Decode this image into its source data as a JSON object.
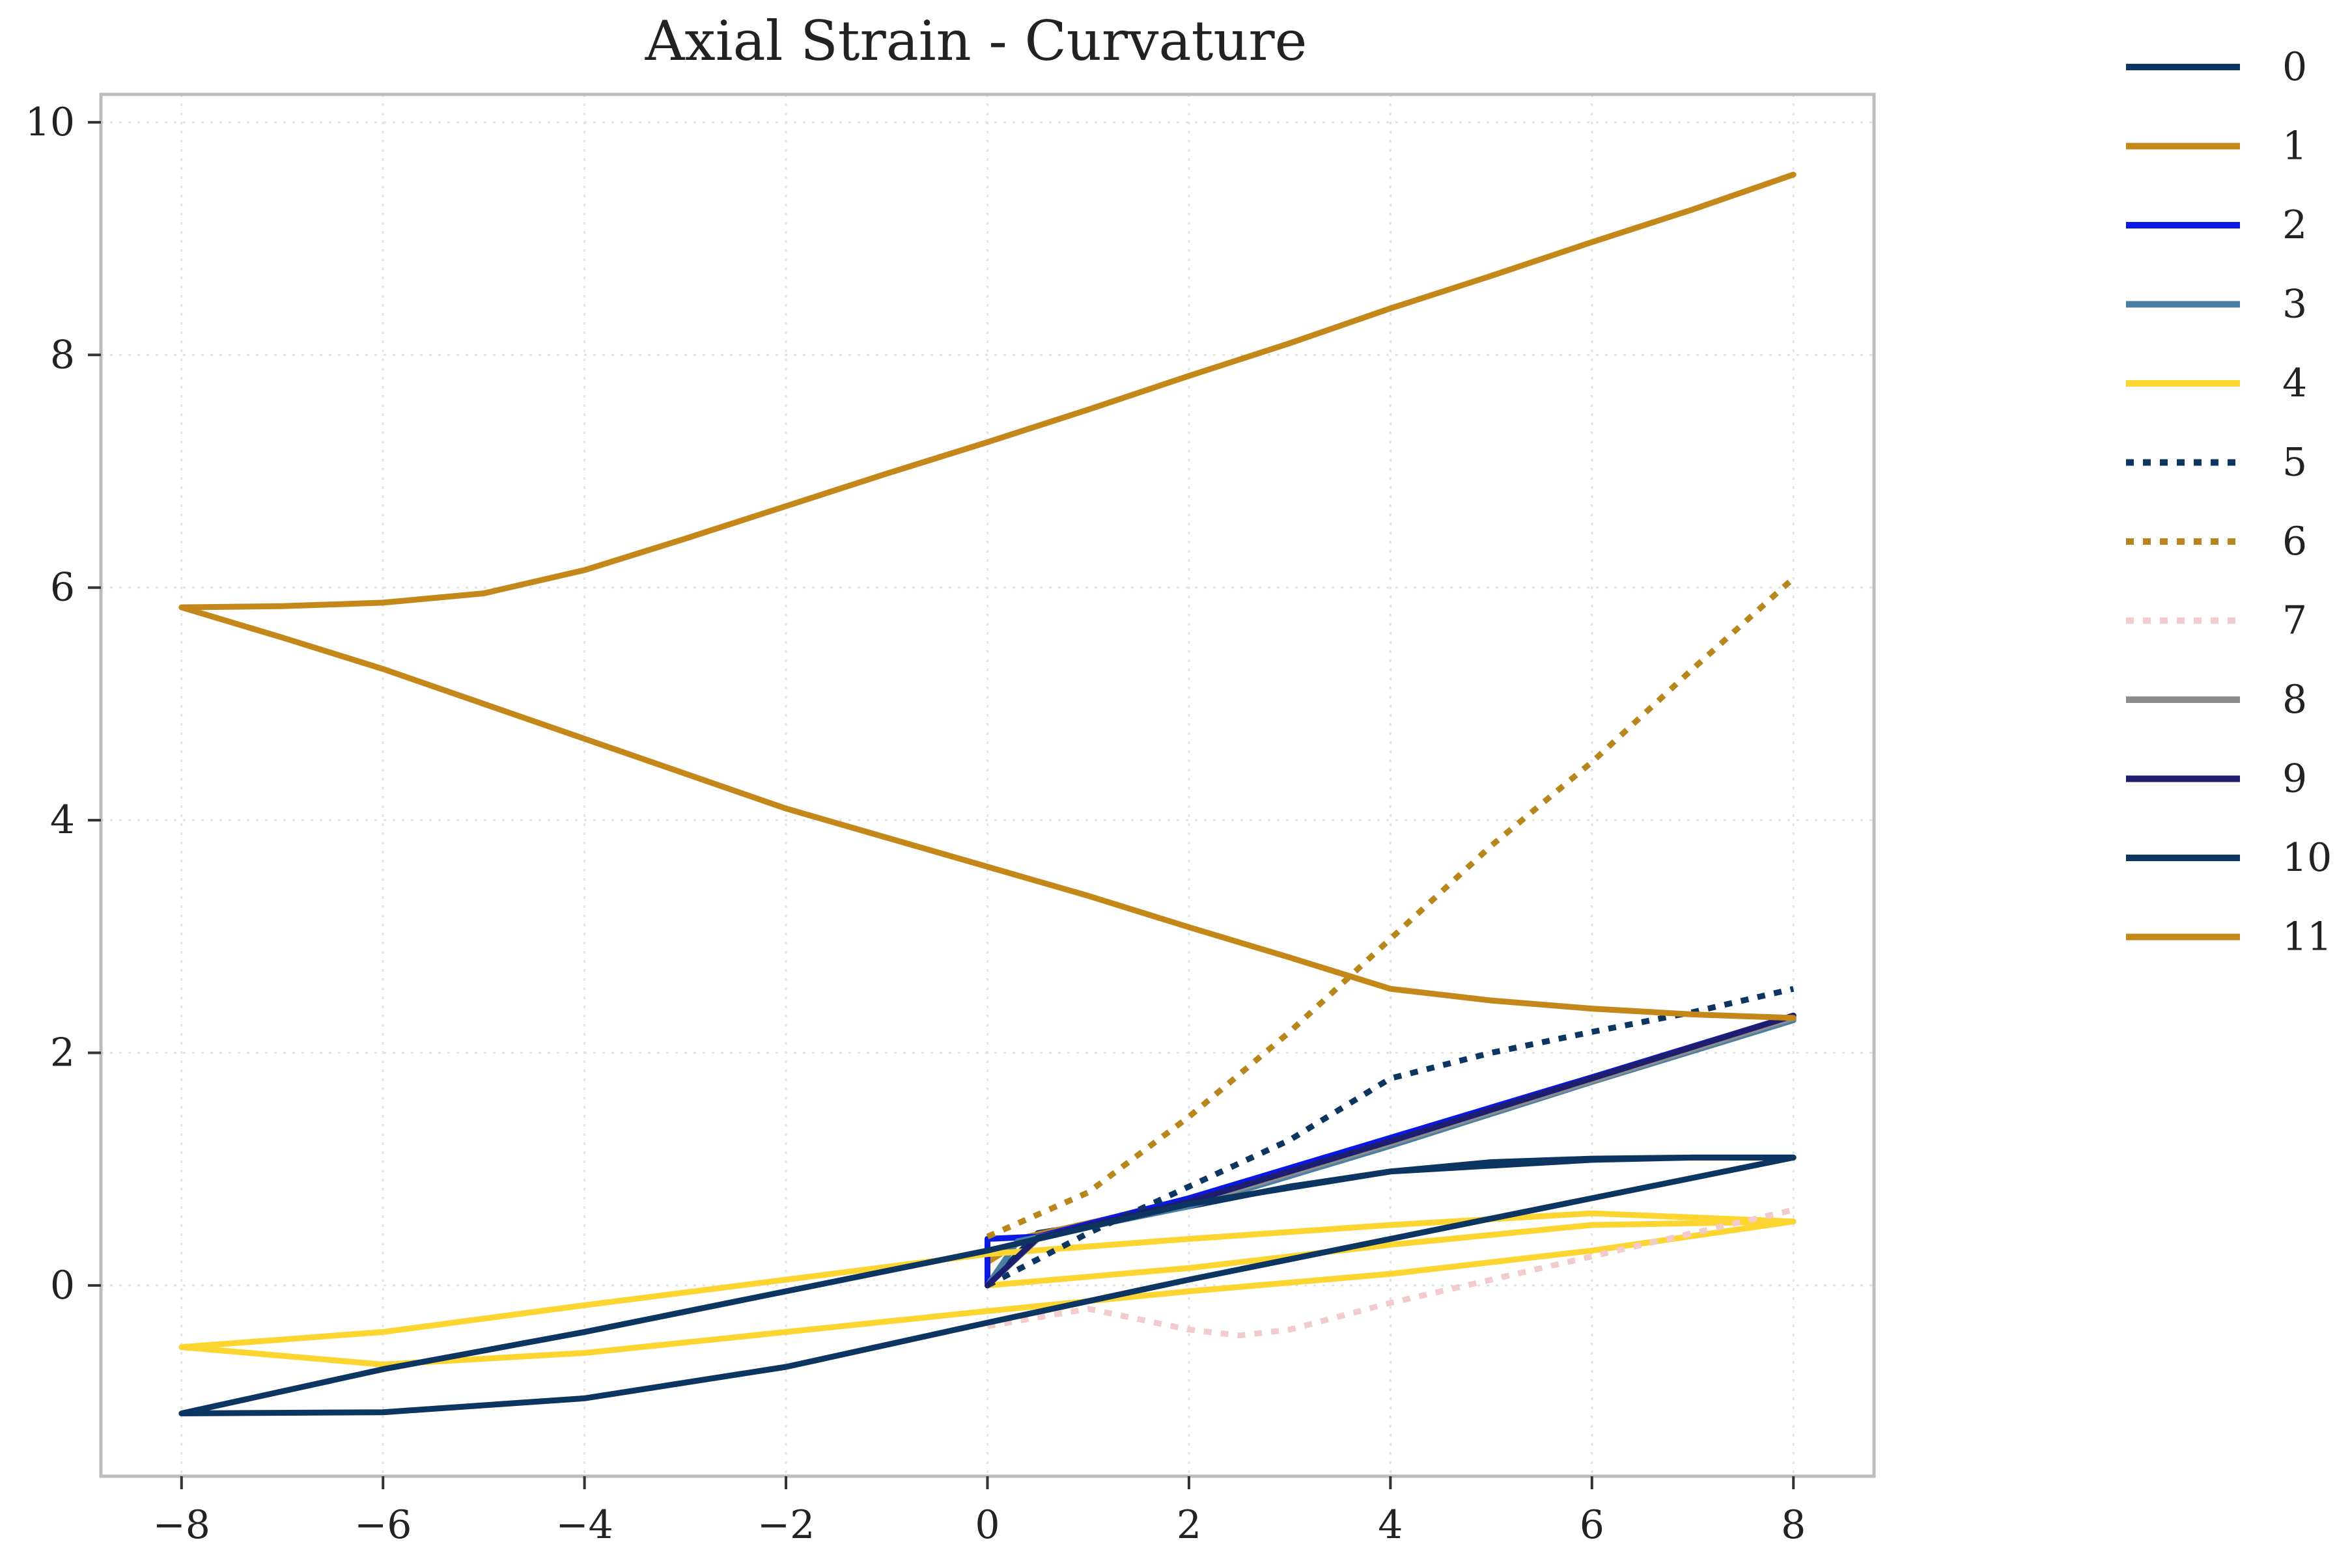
{
  "chart_data": {
    "type": "line",
    "title": "Axial Strain - Curvature",
    "xlabel": "",
    "ylabel": "",
    "xlim": [
      -8.8,
      8.8
    ],
    "ylim": [
      -1.64,
      10.24
    ],
    "xticks": [
      -8,
      -6,
      -4,
      -2,
      0,
      2,
      4,
      6,
      8
    ],
    "xtick_labels": [
      "−8",
      "−6",
      "−4",
      "−2",
      "0",
      "2",
      "4",
      "6",
      "8"
    ],
    "yticks": [
      0,
      2,
      4,
      6,
      8,
      10
    ],
    "ytick_labels": [
      "0",
      "2",
      "4",
      "6",
      "8",
      "10"
    ],
    "grid": true,
    "legend_position": "outside-right",
    "series": [
      {
        "name": "0",
        "color": "#0d3561",
        "dash": "solid",
        "x": [
          0,
          0.5,
          1,
          2,
          3,
          4,
          5,
          6,
          7,
          8
        ],
        "y": [
          0,
          0.45,
          0.52,
          0.68,
          0.85,
          0.98,
          1.06,
          1.09,
          1.1,
          1.1
        ]
      },
      {
        "name": "1",
        "color": "#c4871a",
        "dash": "solid",
        "x": [
          0,
          0,
          0.4,
          2,
          4,
          6,
          8
        ],
        "y": [
          0,
          0.2,
          0.42,
          0.73,
          1.25,
          1.77,
          2.3
        ]
      },
      {
        "name": "2",
        "color": "#0a18e6",
        "dash": "solid",
        "x": [
          0,
          0,
          0.5,
          2,
          4,
          6,
          8
        ],
        "y": [
          0,
          0.4,
          0.42,
          0.75,
          1.27,
          1.79,
          2.32
        ]
      },
      {
        "name": "3",
        "color": "#4a7fa4",
        "dash": "solid",
        "x": [
          0,
          0.3,
          2,
          4,
          6,
          8
        ],
        "y": [
          0,
          0.38,
          0.68,
          1.2,
          1.75,
          2.28
        ]
      },
      {
        "name": "4",
        "color": "#fdd530",
        "dash": "solid",
        "x": [
          0,
          2,
          4,
          6,
          8,
          6,
          4,
          2,
          0,
          -2,
          -4,
          -6,
          -8,
          -6,
          -4,
          -2,
          0,
          2,
          4,
          6,
          8
        ],
        "y": [
          0,
          0.15,
          0.35,
          0.52,
          0.55,
          0.62,
          0.52,
          0.4,
          0.27,
          0.05,
          -0.17,
          -0.4,
          -0.53,
          -0.68,
          -0.58,
          -0.4,
          -0.22,
          -0.05,
          0.1,
          0.3,
          0.55
        ]
      },
      {
        "name": "5",
        "color": "#0d3561",
        "dash": "dot",
        "x": [
          0,
          1,
          2,
          3,
          4,
          5,
          6,
          7,
          8
        ],
        "y": [
          0,
          0.45,
          0.85,
          1.25,
          1.78,
          2.0,
          2.18,
          2.35,
          2.55
        ]
      },
      {
        "name": "6",
        "color": "#b8861a",
        "dash": "dot",
        "x": [
          0,
          1,
          2,
          3,
          4,
          5,
          6,
          7,
          8
        ],
        "y": [
          0.42,
          0.8,
          1.45,
          2.18,
          2.98,
          3.78,
          4.5,
          5.3,
          6.08
        ]
      },
      {
        "name": "7",
        "color": "#f2cccc",
        "dash": "dot",
        "x": [
          0,
          1,
          2,
          2.5,
          3,
          4,
          5,
          6,
          7,
          8
        ],
        "y": [
          -0.35,
          -0.2,
          -0.38,
          -0.43,
          -0.38,
          -0.15,
          0.05,
          0.25,
          0.45,
          0.65
        ]
      },
      {
        "name": "8",
        "color": "#8c8c8c",
        "dash": "solid",
        "x": [
          0,
          0.5,
          2,
          4,
          6,
          8
        ],
        "y": [
          0,
          0.4,
          0.7,
          1.22,
          1.76,
          2.3
        ]
      },
      {
        "name": "9",
        "color": "#1e1e6e",
        "dash": "solid",
        "x": [
          0,
          0.5,
          2,
          4,
          6,
          8
        ],
        "y": [
          0,
          0.41,
          0.72,
          1.24,
          1.78,
          2.32
        ]
      },
      {
        "name": "10",
        "color": "#0d3561",
        "dash": "solid",
        "x": [
          8,
          6,
          4,
          2,
          0,
          -2,
          -4,
          -6,
          -8,
          -6,
          -4,
          -2,
          0,
          2,
          4,
          6,
          7,
          8
        ],
        "y": [
          1.1,
          0.75,
          0.4,
          0.05,
          -0.32,
          -0.7,
          -0.97,
          -1.09,
          -1.1,
          -0.72,
          -0.4,
          -0.05,
          0.3,
          0.7,
          0.98,
          1.08,
          1.1,
          1.1
        ]
      },
      {
        "name": "11",
        "color": "#c4871a",
        "dash": "solid",
        "x": [
          8,
          7,
          6,
          5,
          4,
          3,
          2,
          1,
          0,
          -1,
          -2,
          -3,
          -4,
          -5,
          -6,
          -7,
          -8,
          -7,
          -6,
          -5,
          -4,
          -3,
          -2,
          -1,
          0,
          1,
          2,
          3,
          4,
          5,
          6,
          7,
          8
        ],
        "y": [
          2.3,
          2.33,
          2.38,
          2.45,
          2.55,
          2.82,
          3.08,
          3.35,
          3.6,
          3.85,
          4.1,
          4.4,
          4.7,
          5.0,
          5.3,
          5.57,
          5.83,
          5.84,
          5.87,
          5.95,
          6.15,
          6.42,
          6.7,
          6.98,
          7.25,
          7.53,
          7.82,
          8.1,
          8.4,
          8.68,
          8.97,
          9.25,
          9.55
        ]
      }
    ]
  }
}
